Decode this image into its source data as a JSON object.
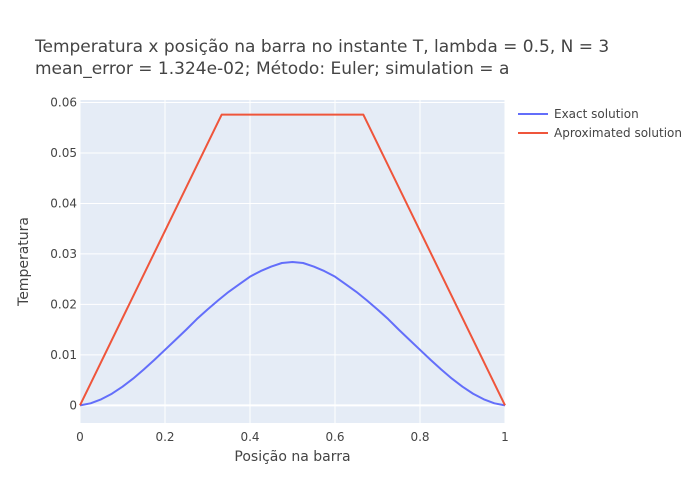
{
  "chart_data": {
    "type": "line",
    "title_lines": [
      "Temperatura x posição na barra no instante T, lambda = 0.5, N = 3",
      "mean_error = 1.324e-02; Método: Euler; simulation = a"
    ],
    "xlabel": "Posição na barra",
    "ylabel": "Temperatura",
    "xlim": [
      0,
      1
    ],
    "ylim": [
      -0.0035,
      0.0605
    ],
    "x_ticks": [
      0,
      0.2,
      0.4,
      0.6,
      0.8,
      1
    ],
    "x_tick_labels": [
      "0",
      "0.2",
      "0.4",
      "0.6",
      "0.8",
      "1"
    ],
    "y_ticks": [
      0,
      0.01,
      0.02,
      0.03,
      0.04,
      0.05,
      0.06
    ],
    "y_tick_labels": [
      "0",
      "0.01",
      "0.02",
      "0.03",
      "0.04",
      "0.05",
      "0.06"
    ],
    "grid": true,
    "legend_position": "top-right, outside plot",
    "series": [
      {
        "name": "Exact solution",
        "color": "#636efa",
        "x": [
          0,
          0.025,
          0.05,
          0.075,
          0.1,
          0.125,
          0.15,
          0.175,
          0.2,
          0.225,
          0.25,
          0.275,
          0.3,
          0.325,
          0.35,
          0.375,
          0.4,
          0.425,
          0.45,
          0.475,
          0.5,
          0.525,
          0.55,
          0.575,
          0.6,
          0.625,
          0.65,
          0.675,
          0.7,
          0.725,
          0.75,
          0.775,
          0.8,
          0.825,
          0.85,
          0.875,
          0.9,
          0.925,
          0.95,
          0.975,
          1
        ],
        "y": [
          0,
          0.0004,
          0.0012,
          0.0023,
          0.0037,
          0.0053,
          0.0071,
          0.009,
          0.011,
          0.013,
          0.015,
          0.0171,
          0.019,
          0.0208,
          0.0225,
          0.024,
          0.0255,
          0.0266,
          0.0275,
          0.0282,
          0.0284,
          0.0282,
          0.0275,
          0.0266,
          0.0255,
          0.024,
          0.0225,
          0.0208,
          0.019,
          0.0171,
          0.015,
          0.013,
          0.011,
          0.009,
          0.0071,
          0.0053,
          0.0037,
          0.0023,
          0.0012,
          0.0004,
          0
        ]
      },
      {
        "name": "Aproximated solution",
        "color": "#ef553b",
        "x": [
          0,
          0.3333,
          0.6667,
          1
        ],
        "y": [
          0,
          0.0576,
          0.0576,
          0
        ]
      }
    ]
  }
}
